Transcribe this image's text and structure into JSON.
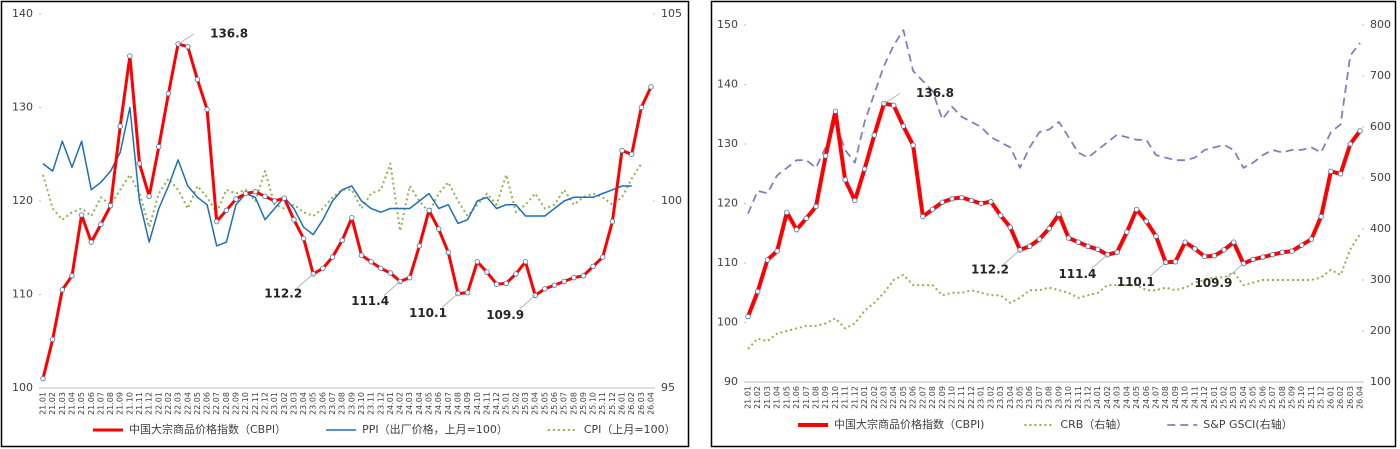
{
  "chart_data": [
    {
      "type": "line",
      "categories": [
        "21.01",
        "21.02",
        "21.03",
        "21.04",
        "21.05",
        "21.06",
        "21.07",
        "21.08",
        "21.09",
        "21.10",
        "21.11",
        "21.12",
        "22.01",
        "22.02",
        "22.03",
        "22.04",
        "22.05",
        "22.06",
        "22.07",
        "22.08",
        "22.09",
        "22.10",
        "22.11",
        "22.12",
        "23.01",
        "23.02",
        "23.03",
        "23.04",
        "23.05",
        "23.06",
        "23.07",
        "23.08",
        "23.09",
        "23.10",
        "23.11",
        "23.12",
        "24.01",
        "24.02",
        "24.03",
        "24.04",
        "24.05",
        "24.06",
        "24.07",
        "24.08",
        "24.09",
        "24.10",
        "24.11",
        "24.12",
        "25.01",
        "25.02",
        "25.03",
        "25.04",
        "25.05",
        "25.06",
        "25.07",
        "25.08",
        "25.09",
        "25.10",
        "25.11",
        "25.12",
        "26.01",
        "26.02",
        "26.03",
        "26.04"
      ],
      "series": [
        {
          "name": "中国大宗商品价格指数（CBPI）",
          "color": "#ff0000",
          "width": 3,
          "markers": true,
          "labeled_points": [
            14,
            28,
            37,
            43,
            51
          ],
          "values": [
            101,
            105.2,
            110.5,
            112,
            118.5,
            115.6,
            117.5,
            119.5,
            128,
            135.5,
            124,
            120.5,
            125.8,
            131.5,
            136.8,
            136.5,
            133,
            129.8,
            117.8,
            119,
            120.2,
            120.8,
            121,
            120.5,
            120,
            120.3,
            118,
            116,
            112.2,
            112.8,
            114,
            115.8,
            118.2,
            114.2,
            113.5,
            112.8,
            112.3,
            111.4,
            111.8,
            115.2,
            119,
            117,
            114.5,
            110.1,
            110.2,
            113.5,
            112.4,
            111.1,
            111.2,
            112.2,
            113.5,
            109.9,
            110.6,
            111,
            111.4,
            111.8,
            112,
            113,
            114,
            117.8,
            125.4,
            125,
            130,
            132.2
          ]
        },
        {
          "name": "PPI（出厂价格，上月=100）",
          "color": "#1f6fb5",
          "width": 1.5,
          "axis": "y2",
          "values": [
            101,
            100.8,
            101.6,
            100.9,
            101.6,
            100.3,
            100.5,
            100.8,
            101.3,
            102.5,
            100,
            98.9,
            99.8,
            100.4,
            101.1,
            100.4,
            100.1,
            99.9,
            98.8,
            98.9,
            99.9,
            100.2,
            100.1,
            99.5,
            99.8,
            100.1,
            99.8,
            99.3,
            99.1,
            99.5,
            100,
            100.3,
            100.4,
            100,
            99.8,
            99.7,
            99.8,
            99.8,
            99.8,
            100,
            100.2,
            99.8,
            99.9,
            99.4,
            99.5,
            100,
            100.1,
            99.8,
            99.9,
            99.9,
            99.6,
            99.6,
            99.6,
            99.8,
            100,
            100.1,
            100.1,
            100.1,
            100.2,
            100.3,
            100.4,
            100.4,
            null,
            null
          ]
        },
        {
          "name": "CPI（上月=100）",
          "color": "#92b050",
          "width": 2,
          "dash": "2 3",
          "axis": "y2",
          "values": [
            100.7,
            99.8,
            99.5,
            99.7,
            99.8,
            99.6,
            100.1,
            99.9,
            100.3,
            100.7,
            100.2,
            99.3,
            100.2,
            100.6,
            100.3,
            99.8,
            100.4,
            100.1,
            99.7,
            100.3,
            100.2,
            100.3,
            100.0,
            100.8,
            99.9,
            99.8,
            99.9,
            99.7,
            99.6,
            99.8,
            100.1,
            100.3,
            100.3,
            99.8,
            100.2,
            100.3,
            101.0,
            99.2,
            100.4,
            100.0,
            99.7,
            100.2,
            100.5,
            100.0,
            99.6,
            99.9,
            100.2,
            99.9,
            100.7,
            99.7,
            99.9,
            100.2,
            99.8,
            99.9,
            100.3,
            99.9,
            100.1,
            100.2,
            100.1,
            99.9,
            100.1,
            100.6,
            101.0,
            null
          ]
        }
      ],
      "ylim": [
        100,
        140
      ],
      "yticks": [
        100,
        110,
        120,
        130,
        140
      ],
      "y2lim": [
        95,
        105
      ],
      "y2ticks": [
        95,
        100,
        105
      ],
      "legend": "bottom"
    },
    {
      "type": "line",
      "categories": [
        "21.01",
        "21.02",
        "21.03",
        "21.04",
        "21.05",
        "21.06",
        "21.07",
        "21.08",
        "21.09",
        "21.10",
        "21.11",
        "21.12",
        "22.01",
        "22.02",
        "22.03",
        "22.04",
        "22.05",
        "22.06",
        "22.07",
        "22.08",
        "22.09",
        "22.10",
        "22.11",
        "22.12",
        "23.01",
        "23.02",
        "23.03",
        "23.04",
        "23.05",
        "23.06",
        "23.07",
        "23.08",
        "23.09",
        "23.10",
        "23.11",
        "23.12",
        "24.01",
        "24.02",
        "24.03",
        "24.04",
        "24.05",
        "24.06",
        "24.07",
        "24.08",
        "24.09",
        "24.10",
        "24.11",
        "24.12",
        "25.01",
        "25.02",
        "25.03",
        "25.04",
        "25.05",
        "25.06",
        "25.07",
        "25.08",
        "25.09",
        "25.10",
        "25.11",
        "25.12",
        "26.01",
        "26.02",
        "26.03",
        "26.04"
      ],
      "series": [
        {
          "name": "中国大宗商品价格指数（CBPI)",
          "color": "#ff0000",
          "width": 4,
          "markers": true,
          "labeled_points": [
            14,
            28,
            37,
            43,
            51
          ],
          "values": [
            101,
            105.2,
            110.5,
            112,
            118.5,
            115.6,
            117.5,
            119.5,
            128,
            135.5,
            124,
            120.5,
            125.8,
            131.5,
            136.8,
            136.5,
            133,
            129.8,
            117.8,
            119,
            120.2,
            120.8,
            121,
            120.5,
            120,
            120.3,
            118,
            116,
            112.2,
            112.8,
            114,
            115.8,
            118.2,
            114.2,
            113.5,
            112.8,
            112.3,
            111.4,
            111.8,
            115.2,
            119,
            117,
            114.5,
            110.1,
            110.2,
            113.5,
            112.4,
            111.1,
            111.2,
            112.2,
            113.5,
            109.9,
            110.6,
            111,
            111.4,
            111.8,
            112,
            113,
            114,
            117.8,
            125.4,
            125,
            130,
            132.2
          ]
        },
        {
          "name": "CRB（右轴）",
          "color": "#92b050",
          "width": 2,
          "dash": "2 3",
          "axis": "y2",
          "values": [
            165,
            185,
            180,
            195,
            200,
            205,
            210,
            210,
            215,
            225,
            205,
            215,
            240,
            255,
            275,
            300,
            310,
            290,
            290,
            290,
            270,
            275,
            275,
            280,
            275,
            270,
            270,
            255,
            265,
            280,
            280,
            285,
            280,
            275,
            265,
            270,
            275,
            290,
            290,
            290,
            290,
            280,
            280,
            285,
            280,
            285,
            295,
            300,
            305,
            305,
            315,
            290,
            295,
            300,
            300,
            300,
            300,
            300,
            300,
            305,
            320,
            310,
            360,
            390
          ]
        },
        {
          "name": "S&P GSCI(右轴）",
          "color": "#8080c0",
          "width": 1.8,
          "dash": "8 5",
          "axis": "y2",
          "values": [
            430,
            475,
            470,
            505,
            520,
            535,
            535,
            520,
            560,
            610,
            555,
            530,
            610,
            665,
            720,
            760,
            790,
            710,
            690,
            670,
            615,
            640,
            620,
            610,
            600,
            580,
            570,
            560,
            520,
            560,
            590,
            595,
            610,
            580,
            550,
            540,
            555,
            570,
            585,
            580,
            575,
            575,
            545,
            540,
            535,
            535,
            540,
            555,
            560,
            565,
            555,
            520,
            530,
            545,
            555,
            550,
            555,
            555,
            560,
            550,
            590,
            605,
            740,
            765
          ]
        }
      ],
      "ylim": [
        90,
        150
      ],
      "yticks": [
        90,
        100,
        110,
        120,
        130,
        140,
        150
      ],
      "y2lim": [
        100,
        800
      ],
      "y2ticks": [
        100,
        200,
        300,
        400,
        500,
        600,
        700,
        800
      ],
      "legend": "bottom"
    }
  ]
}
